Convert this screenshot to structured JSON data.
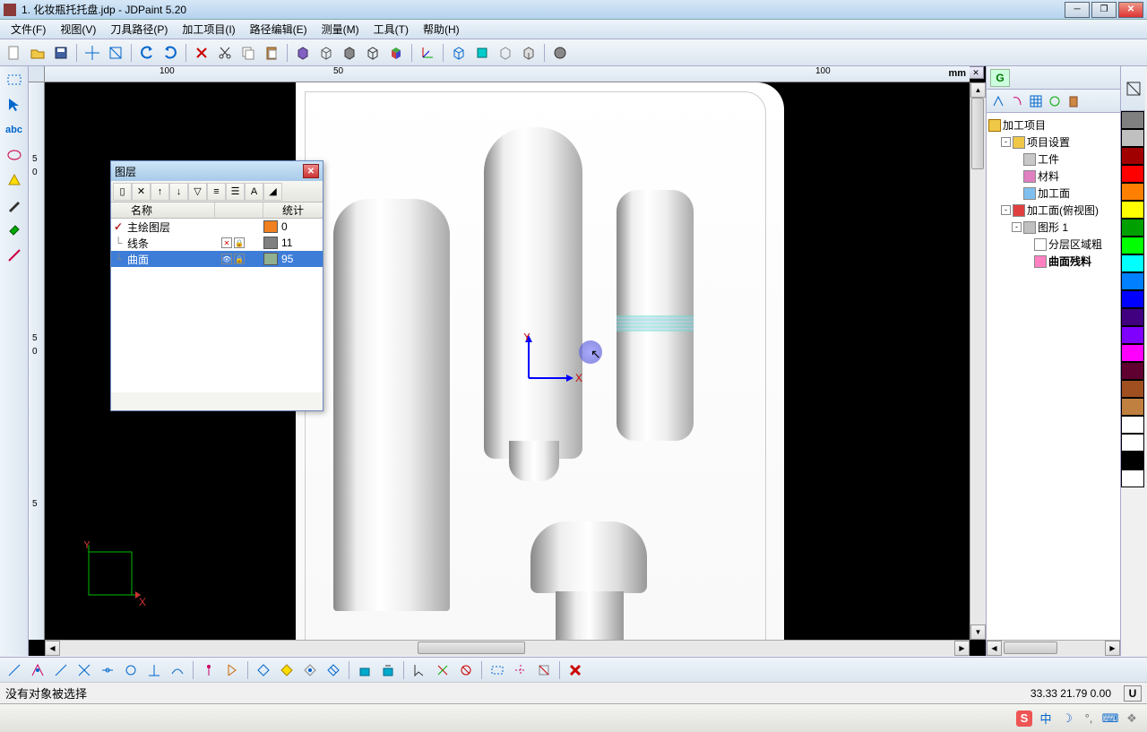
{
  "title": "1.  化妆瓶托托盘.jdp - JDPaint 5.20",
  "menu": [
    "文件(F)",
    "视图(V)",
    "刀具路径(P)",
    "加工项目(I)",
    "路径编辑(E)",
    "测量(M)",
    "工具(T)",
    "帮助(H)"
  ],
  "ruler": {
    "unit": "mm",
    "h_labels": [
      "100",
      "50",
      "100"
    ],
    "v_labels": [
      "5",
      "0",
      "5",
      "0",
      "5"
    ]
  },
  "origin": {
    "x_label": "X",
    "y_label": "Y"
  },
  "corner_axis": {
    "x": "X",
    "y": "Y"
  },
  "layers_dialog": {
    "title": "图层",
    "toolbar_btns": [
      "▯",
      "✕",
      "↑",
      "↓",
      "▽",
      "≡",
      "☰",
      "A",
      "◢"
    ],
    "header": {
      "name": "名称",
      "stat": "统计"
    },
    "rows": [
      {
        "mark": "check",
        "name": "主绘图层",
        "icons": [
          "",
          ""
        ],
        "color": "#f08020",
        "count": "0",
        "sel": false
      },
      {
        "mark": "branch",
        "name": "线条",
        "icons": [
          "x",
          "lock"
        ],
        "color": "#808080",
        "count": "11",
        "sel": false
      },
      {
        "mark": "branch",
        "name": "曲面",
        "icons": [
          "eye",
          "lock"
        ],
        "color": "#90b090",
        "count": "95",
        "sel": true
      }
    ]
  },
  "right_panel": {
    "tab": "G",
    "root": "加工项目",
    "items": [
      {
        "indent": 1,
        "exp": "-",
        "icon": "#f0c848",
        "label": "项目设置"
      },
      {
        "indent": 2,
        "exp": "",
        "icon": "#c8c8c8",
        "label": "工件"
      },
      {
        "indent": 2,
        "exp": "",
        "icon": "#e080c0",
        "label": "材料"
      },
      {
        "indent": 2,
        "exp": "",
        "icon": "#80c0f0",
        "label": "加工面"
      },
      {
        "indent": 1,
        "exp": "-",
        "icon": "#e04040",
        "label": "加工面(俯视图)"
      },
      {
        "indent": 2,
        "exp": "-",
        "icon": "#c0c0c0",
        "label": "图形 1"
      },
      {
        "indent": 3,
        "exp": "",
        "icon": "#ffffff",
        "label": "分层区域粗"
      },
      {
        "indent": 3,
        "exp": "",
        "icon": "#ff80c0",
        "label": "曲面残料",
        "bold": true
      }
    ]
  },
  "colors": [
    "#808080",
    "#c0c0c0",
    "#a00000",
    "#ff0000",
    "#ff8000",
    "#ffff00",
    "#00a000",
    "#00ff00",
    "#00ffff",
    "#0080ff",
    "#0000ff",
    "#400080",
    "#8000ff",
    "#ff00ff",
    "#600030",
    "#a05020",
    "#c08040",
    "#ffffff",
    "#ffffff",
    "#000000",
    "#ffffff"
  ],
  "status": {
    "text": "没有对象被选择",
    "coords": "33.33 21.79 0.00",
    "u": "U"
  },
  "taskbar": {
    "items": [
      "S",
      "中",
      "☽",
      "❏",
      "⌨",
      "❖"
    ]
  }
}
